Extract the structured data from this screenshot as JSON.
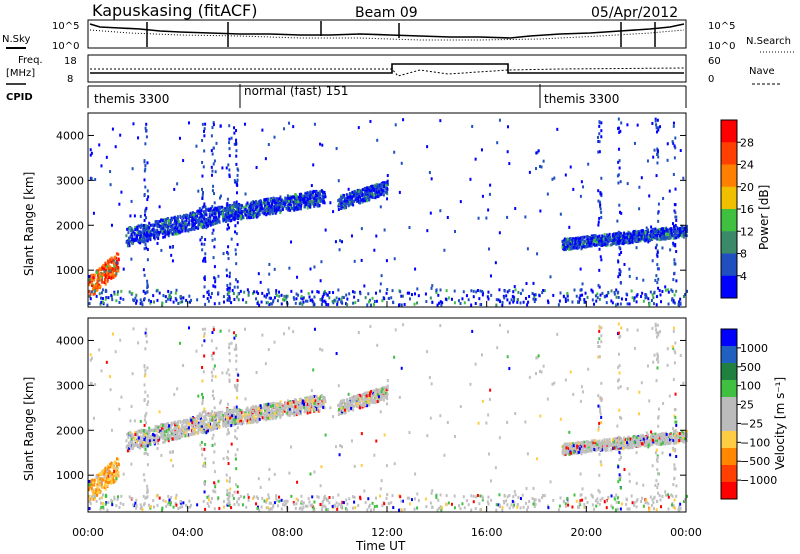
{
  "header": {
    "station": "Kapuskasing (fitACF)",
    "beam": "Beam 09",
    "date": "05/Apr/2012"
  },
  "left_labels": {
    "nsky": "N.Sky",
    "freq_top": "Freq.",
    "freq_unit": "[MHz]",
    "cpid": "CPID"
  },
  "right_labels": {
    "nsearch": "N.Search",
    "nave": "Nave"
  },
  "noise_panel": {
    "left_ticks": [
      "10^5",
      "10^0"
    ],
    "right_ticks": [
      "10^5",
      "10^0"
    ]
  },
  "freq_panel": {
    "left_ticks": [
      "18",
      "8"
    ],
    "right_ticks": [
      "60",
      "0"
    ]
  },
  "cpid_segments": [
    {
      "label": "themis 3300",
      "start_hour": 0
    },
    {
      "label": "normal (fast) 151",
      "start_hour": 6
    },
    {
      "label": "themis 3300",
      "start_hour": 18
    }
  ],
  "colors": {
    "power_scale": [
      "#0000ff",
      "#2050c0",
      "#3a8a6a",
      "#40c040",
      "#f0c000",
      "#ff8000",
      "#ff4000",
      "#ff0000"
    ],
    "velocity_scale": [
      "#ff0000",
      "#ff4000",
      "#ff8800",
      "#ffcc44",
      "#bbbbbb",
      "#bbbbbb",
      "#40c040",
      "#208040",
      "#2060c0",
      "#0000ff"
    ]
  },
  "chart_data": [
    {
      "type": "heatmap",
      "name": "power",
      "ylabel": "Slant Range [km]",
      "ylim": [
        180,
        4500
      ],
      "y_ticks": [
        1000,
        2000,
        3000,
        4000
      ],
      "xlim_hours": [
        0,
        24
      ],
      "colorbar_label": "Power [dB]",
      "colorbar_ticks": [
        "4",
        "8",
        "12",
        "16",
        "20",
        "24",
        "28"
      ],
      "scatter_bands": [
        {
          "x_start": 0.0,
          "x_end": 1.2,
          "y_start": 450,
          "y_end": 1400,
          "level": "high"
        },
        {
          "x_start": 1.5,
          "x_end": 5.0,
          "y_start": 1600,
          "y_end": 2400,
          "level": "low"
        },
        {
          "x_start": 5.0,
          "x_end": 9.5,
          "y_start": 2100,
          "y_end": 2800,
          "level": "low"
        },
        {
          "x_start": 10.0,
          "x_end": 12.0,
          "y_start": 2400,
          "y_end": 3000,
          "level": "low"
        },
        {
          "x_start": 19.0,
          "x_end": 24.0,
          "y_start": 1500,
          "y_end": 2000,
          "level": "low"
        }
      ]
    },
    {
      "type": "heatmap",
      "name": "velocity",
      "ylabel": "Slant Range [km]",
      "ylim": [
        180,
        4500
      ],
      "y_ticks": [
        1000,
        2000,
        3000,
        4000
      ],
      "xlim_hours": [
        0,
        24
      ],
      "xlabel": "Time UT",
      "x_tick_labels": [
        "00:00",
        "04:00",
        "08:00",
        "12:00",
        "16:00",
        "20:00",
        "00:00"
      ],
      "colorbar_label": "Velocity [m s⁻¹]",
      "colorbar_ticks": [
        "1000",
        "500",
        "100",
        "25",
        "−25",
        "−100",
        "−500",
        "−1000"
      ]
    }
  ]
}
